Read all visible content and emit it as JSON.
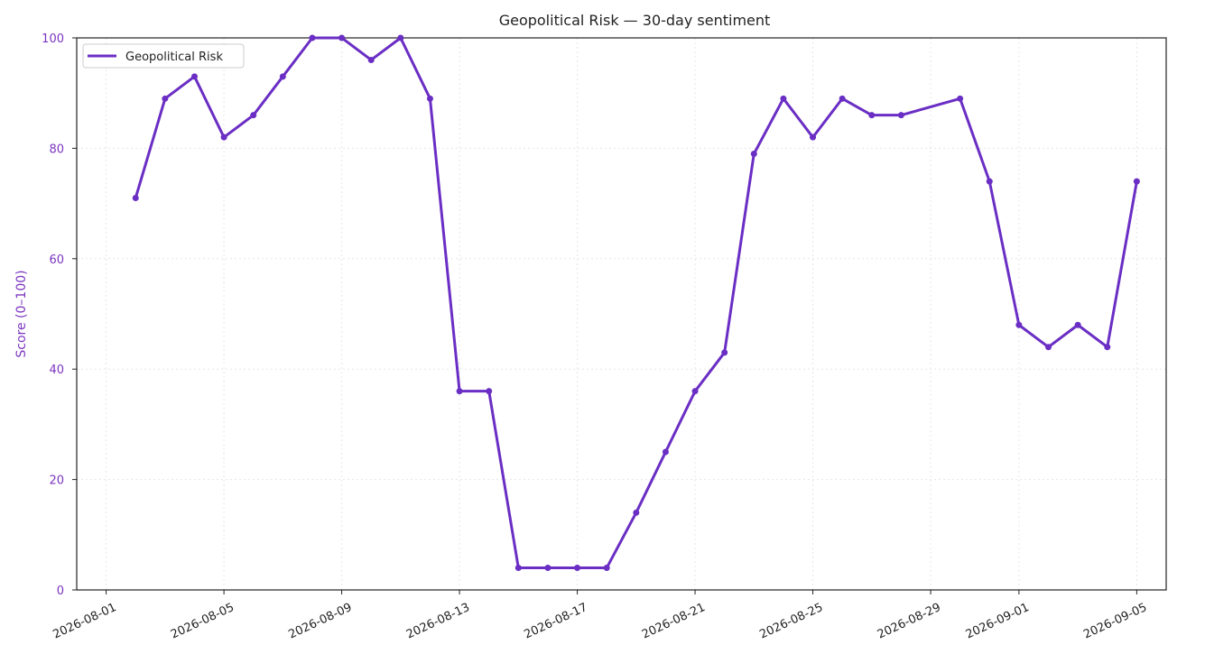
{
  "chart_data": {
    "type": "line",
    "title": "Geopolitical Risk — 30-day sentiment",
    "y_label": "Score (0–100)",
    "x": [
      "2026-08-02",
      "2026-08-03",
      "2026-08-04",
      "2026-08-05",
      "2026-08-06",
      "2026-08-07",
      "2026-08-08",
      "2026-08-09",
      "2026-08-10",
      "2026-08-11",
      "2026-08-12",
      "2026-08-13",
      "2026-08-14",
      "2026-08-15",
      "2026-08-16",
      "2026-08-17",
      "2026-08-18",
      "2026-08-19",
      "2026-08-20",
      "2026-08-21",
      "2026-08-22",
      "2026-08-23",
      "2026-08-24",
      "2026-08-25",
      "2026-08-26",
      "2026-08-27",
      "2026-08-28",
      "2026-08-30",
      "2026-08-31",
      "2026-09-01",
      "2026-09-02",
      "2026-09-03",
      "2026-09-04",
      "2026-09-05"
    ],
    "series": [
      {
        "name": "Geopolitical Risk",
        "color": "#6a2ec4",
        "values": [
          71,
          89,
          93,
          82,
          86,
          93,
          100,
          100,
          96,
          100,
          89,
          36,
          36,
          4,
          4,
          4,
          4,
          14,
          25,
          36,
          43,
          79,
          89,
          82,
          89,
          86,
          86,
          89,
          74,
          48,
          44,
          48,
          44,
          74
        ]
      }
    ],
    "xlim": [
      "2026-07-31",
      "2026-09-06"
    ],
    "xticks": [
      "2026-08-01",
      "2026-08-05",
      "2026-08-09",
      "2026-08-13",
      "2026-08-17",
      "2026-08-21",
      "2026-08-25",
      "2026-08-29",
      "2026-09-01",
      "2026-09-05"
    ],
    "ylim": [
      0,
      100
    ],
    "yticks": [
      0,
      20,
      40,
      60,
      80,
      100
    ],
    "grid": true,
    "legend": "upper left",
    "axis_color": "#7b35c0"
  }
}
